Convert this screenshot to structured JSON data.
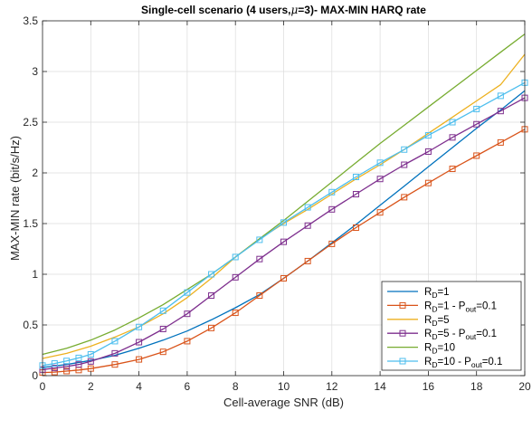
{
  "chart_data": {
    "type": "line",
    "title_parts": {
      "pre": "Single-cell scenario (4 users,",
      "mu": "μ",
      "post": "=3)- MAX-MIN HARQ rate"
    },
    "xlabel": "Cell-average SNR (dB)",
    "ylabel": "MAX-MIN rate (bit/s/Hz)",
    "xlim": [
      0,
      20
    ],
    "ylim": [
      0,
      3.5
    ],
    "xticks": [
      0,
      2,
      4,
      6,
      8,
      10,
      12,
      14,
      16,
      18,
      20
    ],
    "yticks": [
      0,
      0.5,
      1,
      1.5,
      2,
      2.5,
      3,
      3.5
    ],
    "grid": true,
    "legend_location": "bottom-right",
    "series": [
      {
        "legend": {
          "main": "R",
          "sub": "D",
          "rest": "=1"
        },
        "color": "#0072BD",
        "marker": "none",
        "x": [
          0,
          1,
          2,
          3,
          4,
          5,
          6,
          7,
          8,
          9,
          10,
          11,
          12,
          13,
          14,
          15,
          16,
          17,
          18,
          19,
          20
        ],
        "y": [
          0.08,
          0.11,
          0.15,
          0.2,
          0.27,
          0.35,
          0.44,
          0.55,
          0.67,
          0.8,
          0.96,
          1.13,
          1.31,
          1.49,
          1.68,
          1.87,
          2.06,
          2.25,
          2.44,
          2.62,
          2.81
        ]
      },
      {
        "legend": {
          "main": "R",
          "sub": "D",
          "rest": "=1 - P",
          "sub2": "out",
          "rest2": "=0.1"
        },
        "color": "#D95319",
        "marker": "square",
        "x": [
          0,
          0.5,
          1,
          1.5,
          2,
          3,
          4,
          5,
          6,
          7,
          8,
          9,
          10,
          11,
          12,
          13,
          14,
          15,
          16,
          17,
          18,
          19,
          20
        ],
        "y": [
          0.03,
          0.035,
          0.045,
          0.055,
          0.07,
          0.11,
          0.16,
          0.235,
          0.34,
          0.47,
          0.62,
          0.79,
          0.96,
          1.13,
          1.3,
          1.46,
          1.61,
          1.76,
          1.9,
          2.04,
          2.17,
          2.3,
          2.43
        ]
      },
      {
        "legend": {
          "main": "R",
          "sub": "D",
          "rest": "=5"
        },
        "color": "#EDB120",
        "marker": "none",
        "x": [
          0,
          1,
          2,
          3,
          4,
          5,
          6,
          7,
          8,
          9,
          10,
          11,
          12,
          13,
          14,
          15,
          16,
          17,
          18,
          19,
          20
        ],
        "y": [
          0.17,
          0.22,
          0.29,
          0.38,
          0.48,
          0.61,
          0.77,
          0.96,
          1.17,
          1.35,
          1.5,
          1.64,
          1.79,
          1.94,
          2.08,
          2.23,
          2.39,
          2.55,
          2.71,
          2.87,
          3.17
        ]
      },
      {
        "legend": {
          "main": "R",
          "sub": "D",
          "rest": "=5 - P",
          "sub2": "out",
          "rest2": "=0.1"
        },
        "color": "#7E2F8E",
        "marker": "square",
        "x": [
          0,
          0.5,
          1,
          1.5,
          2,
          3,
          4,
          5,
          6,
          7,
          8,
          9,
          10,
          11,
          12,
          13,
          14,
          15,
          16,
          17,
          18,
          19,
          20
        ],
        "y": [
          0.06,
          0.075,
          0.09,
          0.11,
          0.14,
          0.22,
          0.33,
          0.46,
          0.61,
          0.79,
          0.97,
          1.15,
          1.32,
          1.48,
          1.64,
          1.79,
          1.94,
          2.08,
          2.21,
          2.35,
          2.48,
          2.61,
          2.74
        ]
      },
      {
        "legend": {
          "main": "R",
          "sub": "D",
          "rest": "=10"
        },
        "color": "#77AC30",
        "marker": "none",
        "x": [
          0,
          1,
          2,
          3,
          4,
          5,
          6,
          7,
          8,
          9,
          10,
          11,
          12,
          13,
          14,
          15,
          16,
          17,
          18,
          19,
          20
        ],
        "y": [
          0.21,
          0.27,
          0.35,
          0.45,
          0.57,
          0.7,
          0.85,
          1.0,
          1.17,
          1.35,
          1.53,
          1.72,
          1.91,
          2.1,
          2.29,
          2.47,
          2.65,
          2.83,
          3.01,
          3.19,
          3.37
        ]
      },
      {
        "legend": {
          "main": "R",
          "sub": "D",
          "rest": "=10 - P",
          "sub2": "out",
          "rest2": "=0.1"
        },
        "color": "#4DBEEE",
        "marker": "square",
        "x": [
          0,
          0.5,
          1,
          1.5,
          2,
          3,
          4,
          5,
          6,
          7,
          8,
          9,
          10,
          11,
          12,
          13,
          14,
          15,
          16,
          17,
          18,
          19,
          20
        ],
        "y": [
          0.1,
          0.12,
          0.145,
          0.175,
          0.21,
          0.34,
          0.48,
          0.64,
          0.82,
          1.0,
          1.17,
          1.34,
          1.51,
          1.66,
          1.81,
          1.96,
          2.1,
          2.23,
          2.37,
          2.5,
          2.63,
          2.76,
          2.89
        ]
      }
    ]
  }
}
